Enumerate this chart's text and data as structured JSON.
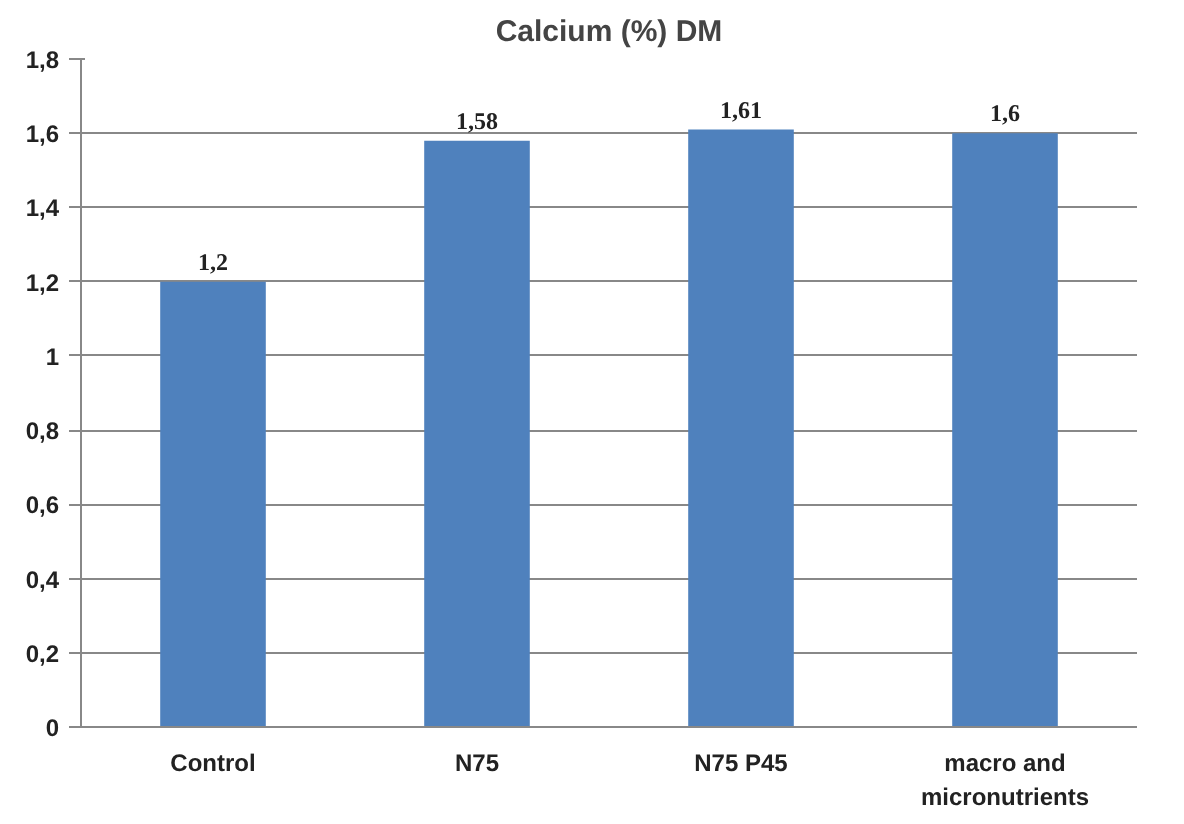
{
  "chart_data": {
    "type": "bar",
    "title": "Calcium (%) DM",
    "categories": [
      "Control",
      "N75",
      "N75 P45",
      "macro and micronutrients"
    ],
    "values": [
      1.2,
      1.58,
      1.61,
      1.6
    ],
    "color": "#4f81bd",
    "value_labels": [
      "1,2",
      "1,58",
      "1,61",
      "1,6"
    ],
    "ylim": [
      0,
      1.8
    ],
    "yticks": [
      {
        "value": 0,
        "label": "0"
      },
      {
        "value": 0.2,
        "label": "0,2"
      },
      {
        "value": 0.4,
        "label": "0,4"
      },
      {
        "value": 0.6,
        "label": "0,6"
      },
      {
        "value": 0.8,
        "label": "0,8"
      },
      {
        "value": 1,
        "label": "1"
      },
      {
        "value": 1.2,
        "label": "1,2"
      },
      {
        "value": 1.4,
        "label": "1,4"
      },
      {
        "value": 1.6,
        "label": "1,6"
      },
      {
        "value": 1.8,
        "label": "1,8"
      }
    ],
    "grid": "y"
  }
}
